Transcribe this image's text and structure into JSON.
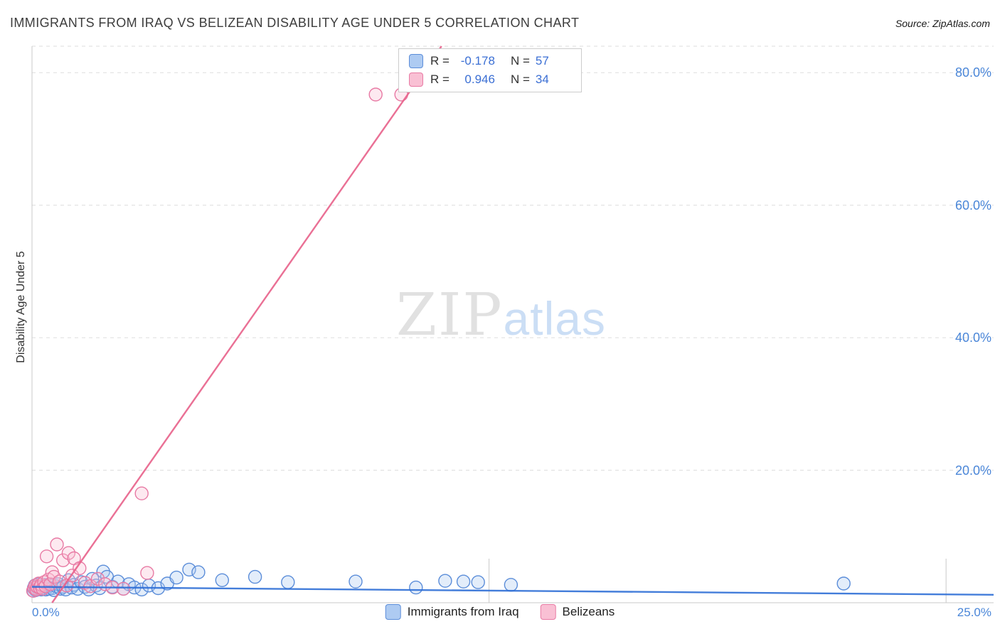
{
  "header": {
    "title": "IMMIGRANTS FROM IRAQ VS BELIZEAN DISABILITY AGE UNDER 5 CORRELATION CHART",
    "source": "Source: ZipAtlas.com"
  },
  "watermark": {
    "part1": "ZIP",
    "part2": "atlas"
  },
  "stats_legend": {
    "rows": [
      {
        "r_label": "R =",
        "r_value": "-0.178",
        "n_label": "N =",
        "n_value": "57"
      },
      {
        "r_label": "R =",
        "r_value": "0.946",
        "n_label": "N =",
        "n_value": "34"
      }
    ]
  },
  "axes": {
    "y_axis_label": "Disability Age Under 5",
    "y_ticks": [
      "80.0%",
      "60.0%",
      "40.0%",
      "20.0%"
    ],
    "x_min": "0.0%",
    "x_max": "25.0%"
  },
  "bottom_legend": {
    "items": [
      {
        "label": "Immigrants from Iraq"
      },
      {
        "label": "Belizeans"
      }
    ]
  },
  "colors": {
    "stat_value": "#3b6fd4",
    "axis_tick_text": "#4a86d8",
    "grid": "#dddddd",
    "axis_line": "#c9c9c9"
  },
  "chart_data": {
    "type": "scatter",
    "title": "Immigrants from Iraq vs Belizean Disability Age Under 5 Correlation",
    "xlabel": "",
    "ylabel": "Disability Age Under 5",
    "xlim": [
      0,
      26.3
    ],
    "ylim": [
      0,
      84
    ],
    "y_grid_values": [
      20,
      40,
      60,
      80,
      84
    ],
    "x_tick_values": [
      12.5,
      25
    ],
    "legend_position": "bottom",
    "series": [
      {
        "name": "Immigrants from Iraq",
        "r": -0.178,
        "n": 57,
        "fill": "#aecbf2",
        "stroke": "#5b8dd9",
        "line_color": "#2f6fd6",
        "trend": [
          [
            0,
            2.4
          ],
          [
            26.3,
            1.2
          ]
        ],
        "points": [
          [
            0.04,
            1.8
          ],
          [
            0.05,
            2.2
          ],
          [
            0.08,
            2.6
          ],
          [
            0.1,
            1.9
          ],
          [
            0.13,
            2.4
          ],
          [
            0.16,
            2.1
          ],
          [
            0.19,
            2.8
          ],
          [
            0.22,
            2.3
          ],
          [
            0.25,
            2.0
          ],
          [
            0.28,
            2.5
          ],
          [
            0.31,
            2.2
          ],
          [
            0.35,
            2.7
          ],
          [
            0.38,
            2.0
          ],
          [
            0.42,
            2.4
          ],
          [
            0.46,
            2.1
          ],
          [
            0.5,
            2.6
          ],
          [
            0.55,
            2.2
          ],
          [
            0.6,
            1.9
          ],
          [
            0.66,
            2.5
          ],
          [
            0.72,
            2.8
          ],
          [
            0.78,
            2.1
          ],
          [
            0.85,
            2.4
          ],
          [
            0.92,
            2.0
          ],
          [
            1.0,
            3.4
          ],
          [
            1.08,
            2.3
          ],
          [
            1.15,
            2.7
          ],
          [
            1.25,
            2.1
          ],
          [
            1.35,
            3.1
          ],
          [
            1.45,
            2.4
          ],
          [
            1.55,
            2.0
          ],
          [
            1.65,
            3.6
          ],
          [
            1.75,
            2.6
          ],
          [
            1.85,
            2.2
          ],
          [
            1.95,
            4.7
          ],
          [
            2.05,
            3.9
          ],
          [
            2.2,
            2.4
          ],
          [
            2.35,
            3.2
          ],
          [
            2.5,
            2.1
          ],
          [
            2.65,
            2.8
          ],
          [
            2.8,
            2.3
          ],
          [
            3.0,
            2.0
          ],
          [
            3.2,
            2.6
          ],
          [
            3.45,
            2.2
          ],
          [
            3.7,
            2.9
          ],
          [
            3.95,
            3.8
          ],
          [
            4.3,
            5.0
          ],
          [
            4.55,
            4.6
          ],
          [
            5.2,
            3.4
          ],
          [
            6.1,
            3.9
          ],
          [
            7.0,
            3.1
          ],
          [
            8.85,
            3.2
          ],
          [
            10.5,
            2.3
          ],
          [
            11.3,
            3.3
          ],
          [
            11.8,
            3.2
          ],
          [
            12.2,
            3.1
          ],
          [
            13.1,
            2.7
          ],
          [
            22.2,
            2.9
          ]
        ]
      },
      {
        "name": "Belizeans",
        "r": 0.946,
        "n": 34,
        "fill": "#f9c0d4",
        "stroke": "#e87aa4",
        "line_color": "#e8608a",
        "trend": [
          [
            0.55,
            0
          ],
          [
            11.2,
            84
          ]
        ],
        "points": [
          [
            0.03,
            1.8
          ],
          [
            0.06,
            2.2
          ],
          [
            0.09,
            2.6
          ],
          [
            0.12,
            2.0
          ],
          [
            0.15,
            2.4
          ],
          [
            0.18,
            2.9
          ],
          [
            0.21,
            2.3
          ],
          [
            0.25,
            2.7
          ],
          [
            0.29,
            2.1
          ],
          [
            0.33,
            3.1
          ],
          [
            0.37,
            2.5
          ],
          [
            0.4,
            7.0
          ],
          [
            0.45,
            3.5
          ],
          [
            0.5,
            2.8
          ],
          [
            0.55,
            4.6
          ],
          [
            0.6,
            3.9
          ],
          [
            0.68,
            8.8
          ],
          [
            0.75,
            3.2
          ],
          [
            0.85,
            6.4
          ],
          [
            0.95,
            2.6
          ],
          [
            1.0,
            7.5
          ],
          [
            1.1,
            4.1
          ],
          [
            1.15,
            6.7
          ],
          [
            1.3,
            5.2
          ],
          [
            1.45,
            3.0
          ],
          [
            1.6,
            2.5
          ],
          [
            1.8,
            3.6
          ],
          [
            2.0,
            2.8
          ],
          [
            2.2,
            2.3
          ],
          [
            2.5,
            2.1
          ],
          [
            3.0,
            16.5
          ],
          [
            3.15,
            4.5
          ],
          [
            9.4,
            76.7
          ],
          [
            10.1,
            76.7
          ]
        ]
      }
    ]
  }
}
